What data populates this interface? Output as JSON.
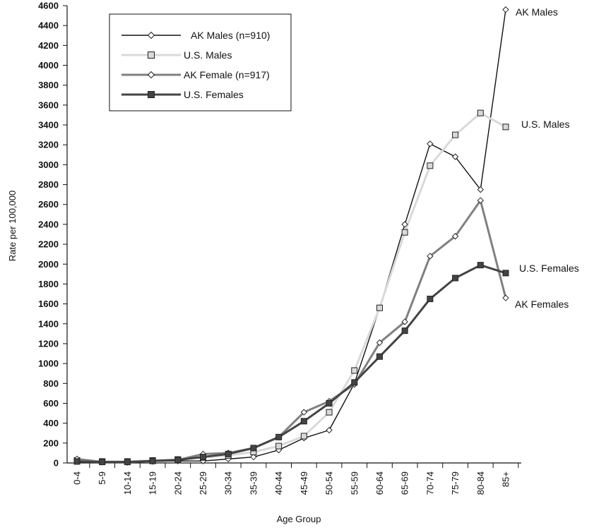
{
  "chart_data": {
    "type": "line",
    "title": "",
    "xlabel": "Age Group",
    "ylabel": "Rate per 100,000",
    "ylim": [
      0,
      4600
    ],
    "ytick_step": 200,
    "grid": false,
    "legend_placement": "top-left",
    "categories": [
      "0-4",
      "5-9",
      "10-14",
      "15-19",
      "20-24",
      "25-29",
      "30-34",
      "35-39",
      "40-44",
      "45-49",
      "50-54",
      "55-59",
      "60-64",
      "65-69",
      "70-74",
      "75-79",
      "80-84",
      "85+"
    ],
    "series": [
      {
        "name": "AK Males (n=910)",
        "end_label": "AK Males",
        "color": "#111111",
        "marker": "diamond",
        "values": [
          30,
          10,
          5,
          15,
          20,
          20,
          40,
          60,
          130,
          250,
          330,
          800,
          1560,
          2400,
          3210,
          3080,
          2750,
          4560
        ]
      },
      {
        "name": "U.S. Males",
        "end_label": "U.S. Males",
        "color": "#d9d9d9",
        "marker": "square",
        "values": [
          25,
          15,
          15,
          25,
          35,
          55,
          75,
          110,
          170,
          270,
          510,
          930,
          1560,
          2320,
          2990,
          3300,
          3520,
          3380
        ]
      },
      {
        "name": "AK Female (n=917)",
        "end_label": "AK Females",
        "color": "#808080",
        "marker": "diamond",
        "values": [
          40,
          10,
          10,
          20,
          30,
          90,
          100,
          150,
          260,
          510,
          620,
          790,
          1210,
          1420,
          2080,
          2280,
          2640,
          1660
        ]
      },
      {
        "name": "U.S. Females",
        "end_label": "U.S. Females",
        "color": "#444444",
        "marker": "square",
        "values": [
          15,
          10,
          10,
          20,
          30,
          60,
          90,
          150,
          260,
          420,
          600,
          810,
          1070,
          1330,
          1650,
          1860,
          1990,
          1910
        ]
      }
    ]
  }
}
